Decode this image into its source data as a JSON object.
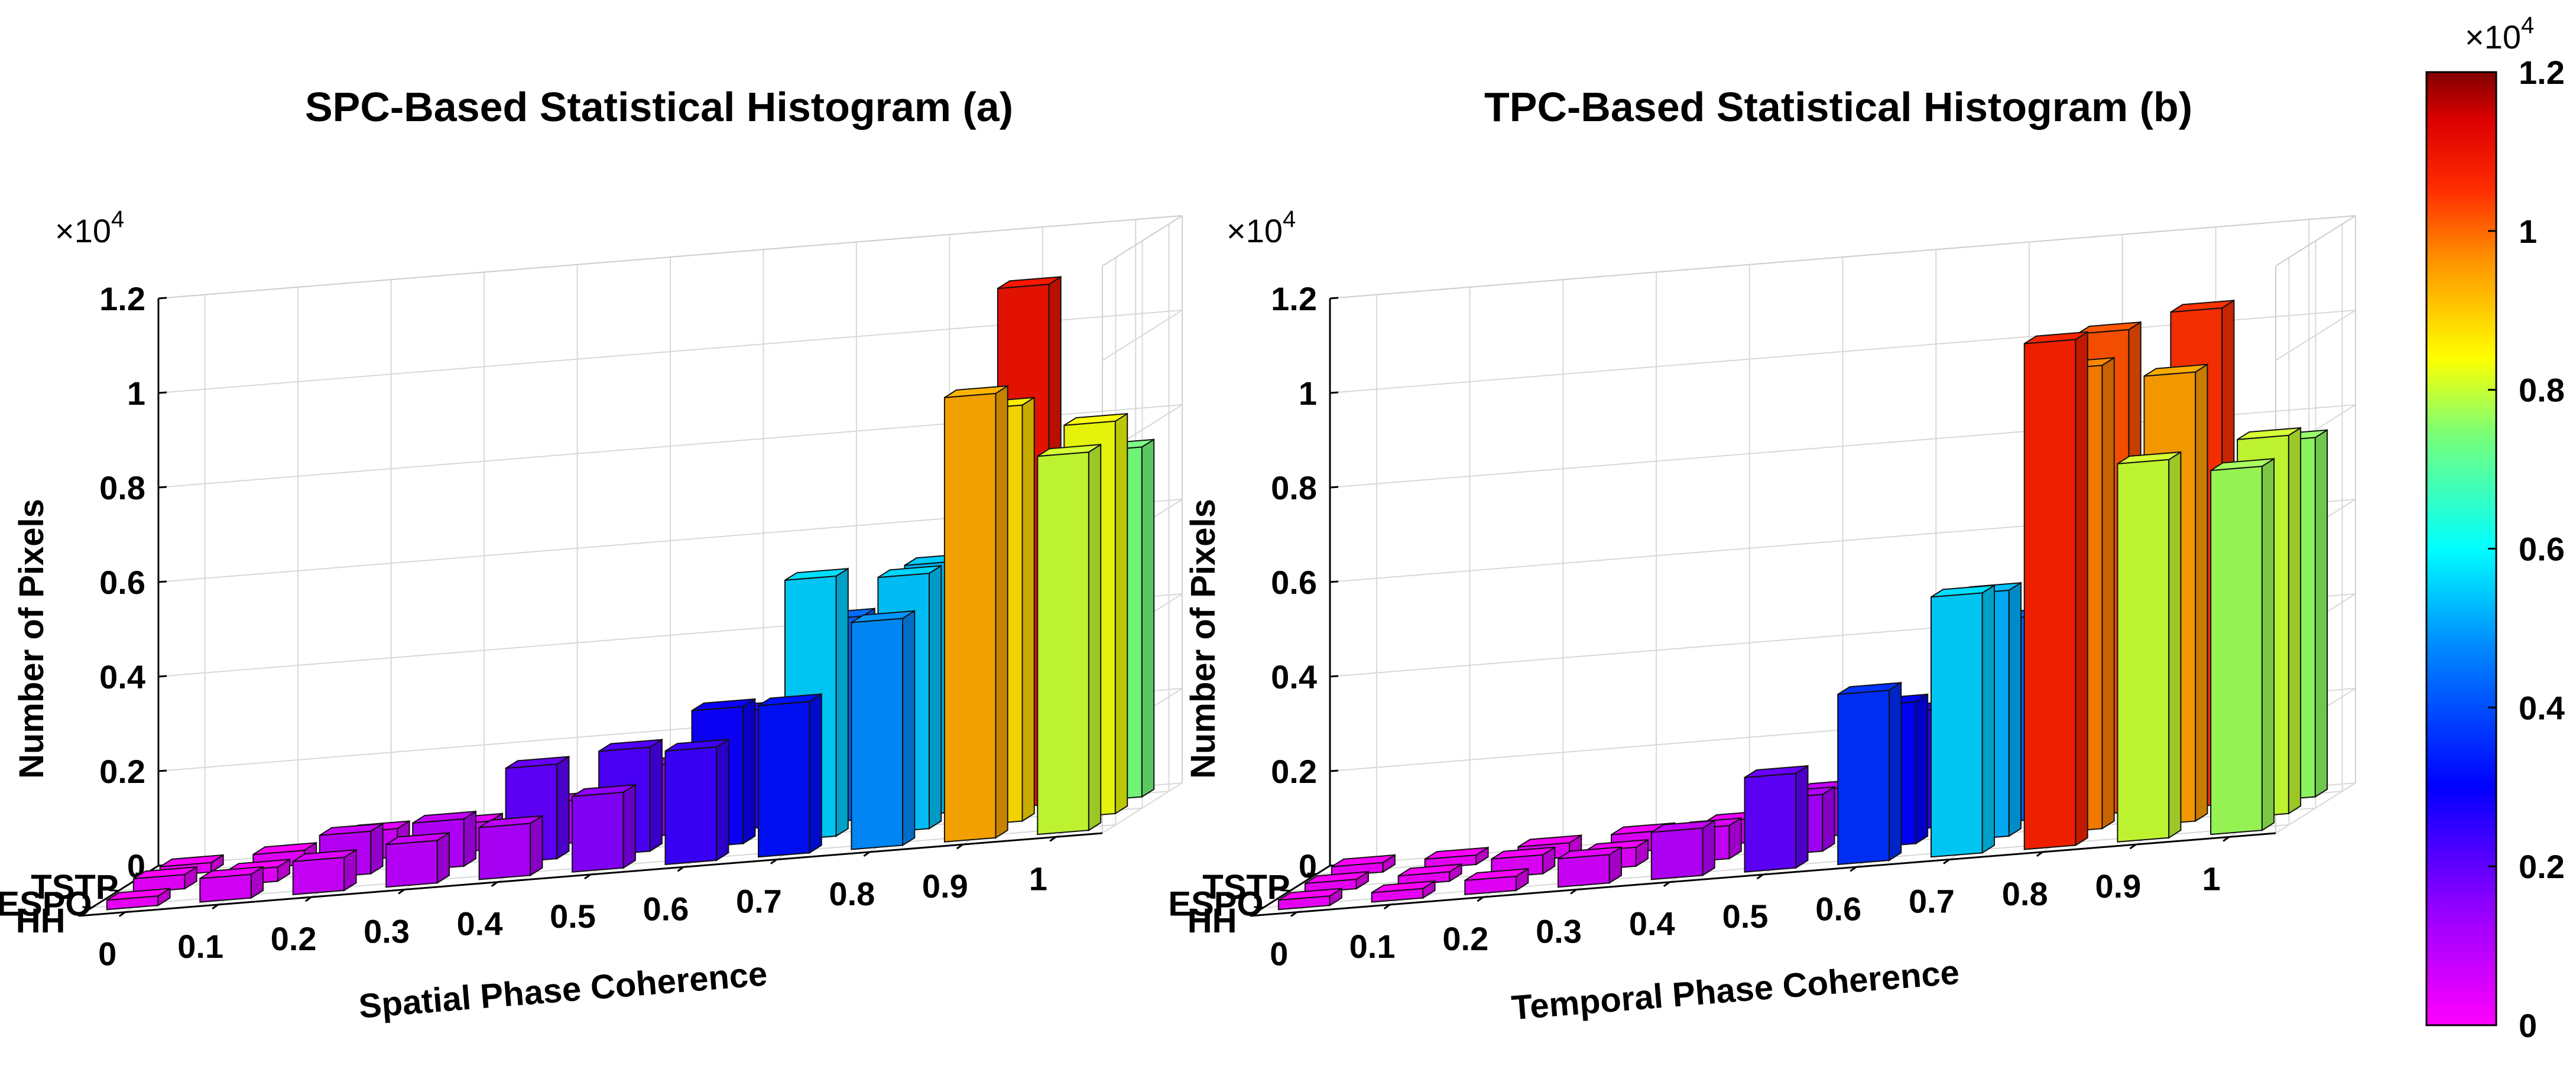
{
  "chart_data": [
    {
      "type": "bar3d",
      "title": "SPC-Based Statistical Histogram (a)",
      "xlabel": "Spatial Phase Coherence",
      "ylabel": "Number of Pixels",
      "exponent_base": "×10",
      "exponent_power": "4",
      "zlim": [
        0,
        1.2
      ],
      "z_ticks": [
        "0",
        "0.2",
        "0.4",
        "0.6",
        "0.8",
        "1",
        "1.2"
      ],
      "categories": [
        "0",
        "0.1",
        "0.2",
        "0.3",
        "0.4",
        "0.5",
        "0.6",
        "0.7",
        "0.8",
        "0.9",
        "1"
      ],
      "series": [
        {
          "name": "TSTP",
          "values": [
            0.02,
            0.03,
            0.06,
            0.06,
            0.09,
            0.15,
            0.25,
            0.43,
            0.53,
            1.1,
            0.74
          ]
        },
        {
          "name": "ESPO",
          "values": [
            0.03,
            0.03,
            0.09,
            0.1,
            0.2,
            0.22,
            0.29,
            0.55,
            0.54,
            0.88,
            0.83
          ]
        },
        {
          "name": "HH",
          "values": [
            0.02,
            0.05,
            0.07,
            0.09,
            0.11,
            0.16,
            0.24,
            0.32,
            0.48,
            0.94,
            0.8
          ]
        }
      ]
    },
    {
      "type": "bar3d",
      "title": "TPC-Based Statistical Histogram (b)",
      "xlabel": "Temporal Phase Coherence",
      "ylabel": "Number of Pixels",
      "exponent_base": "×10",
      "exponent_power": "4",
      "zlim": [
        0,
        1.2
      ],
      "z_ticks": [
        "0",
        "0.2",
        "0.4",
        "0.6",
        "0.8",
        "1",
        "1.2"
      ],
      "categories": [
        "0",
        "0.1",
        "0.2",
        "0.3",
        "0.4",
        "0.5",
        "0.6",
        "0.7",
        "0.8",
        "0.9",
        "1"
      ],
      "series": [
        {
          "name": "TSTP",
          "values": [
            0.02,
            0.02,
            0.03,
            0.04,
            0.05,
            0.1,
            0.25,
            0.43,
            1.02,
            1.05,
            0.76
          ]
        },
        {
          "name": "ESPO",
          "values": [
            0.02,
            0.02,
            0.04,
            0.04,
            0.07,
            0.12,
            0.3,
            0.52,
            0.98,
            0.95,
            0.8
          ]
        },
        {
          "name": "HH",
          "values": [
            0.02,
            0.02,
            0.03,
            0.06,
            0.1,
            0.2,
            0.36,
            0.55,
            1.07,
            0.8,
            0.77
          ]
        }
      ]
    }
  ],
  "colorbar": {
    "exponent_base": "×10",
    "exponent_power": "4",
    "range": [
      0,
      1.2
    ],
    "ticks": [
      "0",
      "0.2",
      "0.4",
      "0.6",
      "0.8",
      "1",
      "1.2"
    ],
    "colormap": "jet-like"
  }
}
